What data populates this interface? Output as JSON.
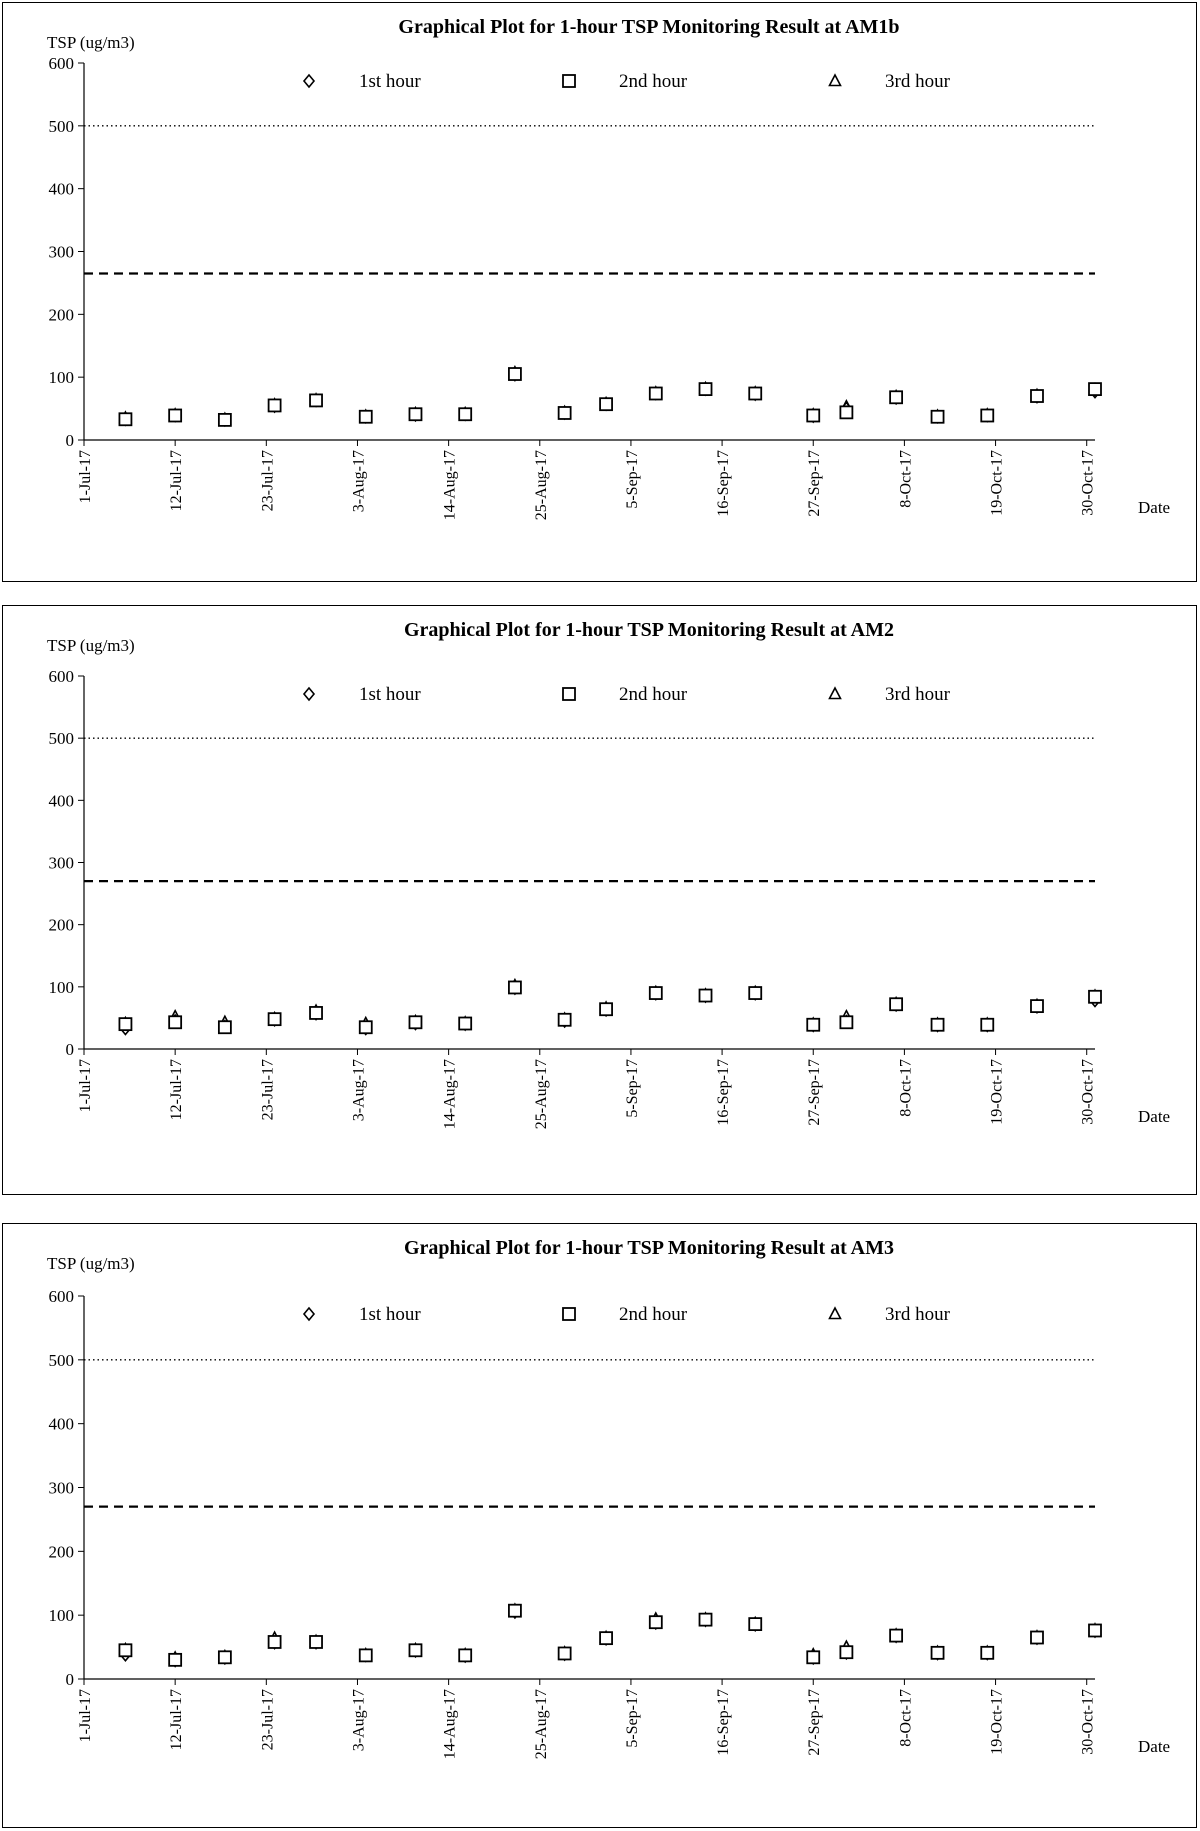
{
  "chart_data": [
    {
      "type": "scatter",
      "title": "Graphical Plot for 1-hour TSP Monitoring Result at AM1b",
      "ylabel": "TSP (ug/m3)",
      "xlabel": "Date",
      "ylim": [
        0,
        600
      ],
      "yticks": [
        0,
        100,
        200,
        300,
        400,
        500,
        600
      ],
      "xlim": [
        "1-Jul-17",
        "31-Oct-17"
      ],
      "xtick_labels": [
        "1-Jul-17",
        "12-Jul-17",
        "23-Jul-17",
        "3-Aug-17",
        "14-Aug-17",
        "25-Aug-17",
        "5-Sep-17",
        "16-Sep-17",
        "27-Sep-17",
        "8-Oct-17",
        "19-Oct-17",
        "30-Oct-17"
      ],
      "limit_lines": [
        {
          "value": 500,
          "style": "dotted"
        },
        {
          "value": 265,
          "style": "dashed"
        }
      ],
      "legend_position": "top",
      "series": [
        {
          "name": "1st hour",
          "marker": "diamond",
          "points": [
            [
              "2017-07-06",
              33
            ],
            [
              "2017-07-12",
              39
            ],
            [
              "2017-07-18",
              32
            ],
            [
              "2017-07-24",
              54
            ],
            [
              "2017-07-29",
              63
            ],
            [
              "2017-08-04",
              37
            ],
            [
              "2017-08-10",
              40
            ],
            [
              "2017-08-16",
              41
            ],
            [
              "2017-08-22",
              104
            ],
            [
              "2017-08-28",
              43
            ],
            [
              "2017-09-02",
              57
            ],
            [
              "2017-09-08",
              74
            ],
            [
              "2017-09-14",
              81
            ],
            [
              "2017-09-20",
              73
            ],
            [
              "2017-09-27",
              38
            ],
            [
              "2017-10-01",
              50
            ],
            [
              "2017-10-07",
              67
            ],
            [
              "2017-10-12",
              37
            ],
            [
              "2017-10-18",
              39
            ],
            [
              "2017-10-24",
              69
            ],
            [
              "2017-10-31",
              77
            ]
          ]
        },
        {
          "name": "2nd hour",
          "marker": "square",
          "points": [
            [
              "2017-07-06",
              33
            ],
            [
              "2017-07-12",
              39
            ],
            [
              "2017-07-18",
              32
            ],
            [
              "2017-07-24",
              55
            ],
            [
              "2017-07-29",
              63
            ],
            [
              "2017-08-04",
              37
            ],
            [
              "2017-08-10",
              41
            ],
            [
              "2017-08-16",
              41
            ],
            [
              "2017-08-22",
              105
            ],
            [
              "2017-08-28",
              43
            ],
            [
              "2017-09-02",
              57
            ],
            [
              "2017-09-08",
              74
            ],
            [
              "2017-09-14",
              81
            ],
            [
              "2017-09-20",
              74
            ],
            [
              "2017-09-27",
              39
            ],
            [
              "2017-10-01",
              44
            ],
            [
              "2017-10-07",
              68
            ],
            [
              "2017-10-12",
              37
            ],
            [
              "2017-10-18",
              39
            ],
            [
              "2017-10-24",
              70
            ],
            [
              "2017-10-31",
              81
            ]
          ]
        },
        {
          "name": "3rd hour",
          "marker": "triangle",
          "points": [
            [
              "2017-07-06",
              35
            ],
            [
              "2017-07-12",
              40
            ],
            [
              "2017-07-18",
              33
            ],
            [
              "2017-07-24",
              56
            ],
            [
              "2017-07-29",
              64
            ],
            [
              "2017-08-04",
              38
            ],
            [
              "2017-08-10",
              42
            ],
            [
              "2017-08-16",
              42
            ],
            [
              "2017-08-22",
              107
            ],
            [
              "2017-08-28",
              44
            ],
            [
              "2017-09-02",
              58
            ],
            [
              "2017-09-08",
              75
            ],
            [
              "2017-09-14",
              82
            ],
            [
              "2017-09-20",
              75
            ],
            [
              "2017-09-27",
              40
            ],
            [
              "2017-10-01",
              53
            ],
            [
              "2017-10-07",
              69
            ],
            [
              "2017-10-12",
              38
            ],
            [
              "2017-10-18",
              40
            ],
            [
              "2017-10-24",
              71
            ],
            [
              "2017-10-31",
              80
            ]
          ]
        }
      ]
    },
    {
      "type": "scatter",
      "title": "Graphical Plot for 1-hour TSP Monitoring Result at AM2",
      "ylabel": "TSP (ug/m3)",
      "xlabel": "Date",
      "ylim": [
        0,
        600
      ],
      "yticks": [
        0,
        100,
        200,
        300,
        400,
        500,
        600
      ],
      "xlim": [
        "1-Jul-17",
        "31-Oct-17"
      ],
      "xtick_labels": [
        "1-Jul-17",
        "12-Jul-17",
        "23-Jul-17",
        "3-Aug-17",
        "14-Aug-17",
        "25-Aug-17",
        "5-Sep-17",
        "16-Sep-17",
        "27-Sep-17",
        "8-Oct-17",
        "19-Oct-17",
        "30-Oct-17"
      ],
      "limit_lines": [
        {
          "value": 500,
          "style": "dotted"
        },
        {
          "value": 270,
          "style": "dashed"
        }
      ],
      "legend_position": "top",
      "series": [
        {
          "name": "1st hour",
          "marker": "diamond",
          "points": [
            [
              "2017-07-06",
              33
            ],
            [
              "2017-07-12",
              45
            ],
            [
              "2017-07-18",
              36
            ],
            [
              "2017-07-24",
              47
            ],
            [
              "2017-07-29",
              57
            ],
            [
              "2017-08-04",
              33
            ],
            [
              "2017-08-10",
              41
            ],
            [
              "2017-08-16",
              40
            ],
            [
              "2017-08-22",
              98
            ],
            [
              "2017-08-28",
              45
            ],
            [
              "2017-09-02",
              63
            ],
            [
              "2017-09-08",
              89
            ],
            [
              "2017-09-14",
              85
            ],
            [
              "2017-09-20",
              89
            ],
            [
              "2017-09-27",
              38
            ],
            [
              "2017-10-01",
              44
            ],
            [
              "2017-10-07",
              71
            ],
            [
              "2017-10-12",
              38
            ],
            [
              "2017-10-18",
              38
            ],
            [
              "2017-10-24",
              68
            ],
            [
              "2017-10-31",
              78
            ]
          ]
        },
        {
          "name": "2nd hour",
          "marker": "square",
          "points": [
            [
              "2017-07-06",
              40
            ],
            [
              "2017-07-12",
              43
            ],
            [
              "2017-07-18",
              35
            ],
            [
              "2017-07-24",
              48
            ],
            [
              "2017-07-29",
              58
            ],
            [
              "2017-08-04",
              35
            ],
            [
              "2017-08-10",
              43
            ],
            [
              "2017-08-16",
              41
            ],
            [
              "2017-08-22",
              99
            ],
            [
              "2017-08-28",
              47
            ],
            [
              "2017-09-02",
              64
            ],
            [
              "2017-09-08",
              90
            ],
            [
              "2017-09-14",
              86
            ],
            [
              "2017-09-20",
              90
            ],
            [
              "2017-09-27",
              39
            ],
            [
              "2017-10-01",
              43
            ],
            [
              "2017-10-07",
              72
            ],
            [
              "2017-10-12",
              39
            ],
            [
              "2017-10-18",
              39
            ],
            [
              "2017-10-24",
              69
            ],
            [
              "2017-10-31",
              84
            ]
          ]
        },
        {
          "name": "3rd hour",
          "marker": "triangle",
          "points": [
            [
              "2017-07-06",
              41
            ],
            [
              "2017-07-12",
              52
            ],
            [
              "2017-07-18",
              43
            ],
            [
              "2017-07-24",
              49
            ],
            [
              "2017-07-29",
              61
            ],
            [
              "2017-08-04",
              41
            ],
            [
              "2017-08-10",
              44
            ],
            [
              "2017-08-16",
              42
            ],
            [
              "2017-08-22",
              102
            ],
            [
              "2017-08-28",
              48
            ],
            [
              "2017-09-02",
              66
            ],
            [
              "2017-09-08",
              91
            ],
            [
              "2017-09-14",
              87
            ],
            [
              "2017-09-20",
              91
            ],
            [
              "2017-09-27",
              40
            ],
            [
              "2017-10-01",
              52
            ],
            [
              "2017-10-07",
              73
            ],
            [
              "2017-10-12",
              40
            ],
            [
              "2017-10-18",
              40
            ],
            [
              "2017-10-24",
              70
            ],
            [
              "2017-10-31",
              85
            ]
          ]
        }
      ]
    },
    {
      "type": "scatter",
      "title": "Graphical Plot for 1-hour TSP Monitoring Result at AM3",
      "ylabel": "TSP (ug/m3)",
      "xlabel": "Date",
      "ylim": [
        0,
        600
      ],
      "yticks": [
        0,
        100,
        200,
        300,
        400,
        500,
        600
      ],
      "xlim": [
        "1-Jul-17",
        "31-Oct-17"
      ],
      "xtick_labels": [
        "1-Jul-17",
        "12-Jul-17",
        "23-Jul-17",
        "3-Aug-17",
        "14-Aug-17",
        "25-Aug-17",
        "5-Sep-17",
        "16-Sep-17",
        "27-Sep-17",
        "8-Oct-17",
        "19-Oct-17",
        "30-Oct-17"
      ],
      "limit_lines": [
        {
          "value": 500,
          "style": "dotted"
        },
        {
          "value": 270,
          "style": "dashed"
        }
      ],
      "legend_position": "top",
      "series": [
        {
          "name": "1st hour",
          "marker": "diamond",
          "points": [
            [
              "2017-07-06",
              38
            ],
            [
              "2017-07-12",
              29
            ],
            [
              "2017-07-18",
              33
            ],
            [
              "2017-07-24",
              57
            ],
            [
              "2017-07-29",
              57
            ],
            [
              "2017-08-04",
              37
            ],
            [
              "2017-08-10",
              44
            ],
            [
              "2017-08-16",
              36
            ],
            [
              "2017-08-22",
              105
            ],
            [
              "2017-08-28",
              39
            ],
            [
              "2017-09-02",
              63
            ],
            [
              "2017-09-08",
              88
            ],
            [
              "2017-09-14",
              92
            ],
            [
              "2017-09-20",
              85
            ],
            [
              "2017-09-27",
              33
            ],
            [
              "2017-10-01",
              41
            ],
            [
              "2017-10-07",
              67
            ],
            [
              "2017-10-12",
              40
            ],
            [
              "2017-10-18",
              40
            ],
            [
              "2017-10-24",
              64
            ],
            [
              "2017-10-31",
              75
            ]
          ]
        },
        {
          "name": "2nd hour",
          "marker": "square",
          "points": [
            [
              "2017-07-06",
              45
            ],
            [
              "2017-07-12",
              30
            ],
            [
              "2017-07-18",
              34
            ],
            [
              "2017-07-24",
              58
            ],
            [
              "2017-07-29",
              58
            ],
            [
              "2017-08-04",
              37
            ],
            [
              "2017-08-10",
              45
            ],
            [
              "2017-08-16",
              37
            ],
            [
              "2017-08-22",
              107
            ],
            [
              "2017-08-28",
              40
            ],
            [
              "2017-09-02",
              64
            ],
            [
              "2017-09-08",
              89
            ],
            [
              "2017-09-14",
              93
            ],
            [
              "2017-09-20",
              86
            ],
            [
              "2017-09-27",
              34
            ],
            [
              "2017-10-01",
              42
            ],
            [
              "2017-10-07",
              68
            ],
            [
              "2017-10-12",
              41
            ],
            [
              "2017-10-18",
              41
            ],
            [
              "2017-10-24",
              65
            ],
            [
              "2017-10-31",
              76
            ]
          ]
        },
        {
          "name": "3rd hour",
          "marker": "triangle",
          "points": [
            [
              "2017-07-06",
              46
            ],
            [
              "2017-07-12",
              33
            ],
            [
              "2017-07-18",
              35
            ],
            [
              "2017-07-24",
              64
            ],
            [
              "2017-07-29",
              59
            ],
            [
              "2017-08-04",
              38
            ],
            [
              "2017-08-10",
              46
            ],
            [
              "2017-08-16",
              38
            ],
            [
              "2017-08-22",
              108
            ],
            [
              "2017-08-28",
              41
            ],
            [
              "2017-09-02",
              65
            ],
            [
              "2017-09-08",
              94
            ],
            [
              "2017-09-14",
              94
            ],
            [
              "2017-09-20",
              87
            ],
            [
              "2017-09-27",
              38
            ],
            [
              "2017-10-01",
              50
            ],
            [
              "2017-10-07",
              69
            ],
            [
              "2017-10-12",
              42
            ],
            [
              "2017-10-18",
              42
            ],
            [
              "2017-10-24",
              66
            ],
            [
              "2017-10-31",
              77
            ]
          ]
        }
      ]
    }
  ]
}
